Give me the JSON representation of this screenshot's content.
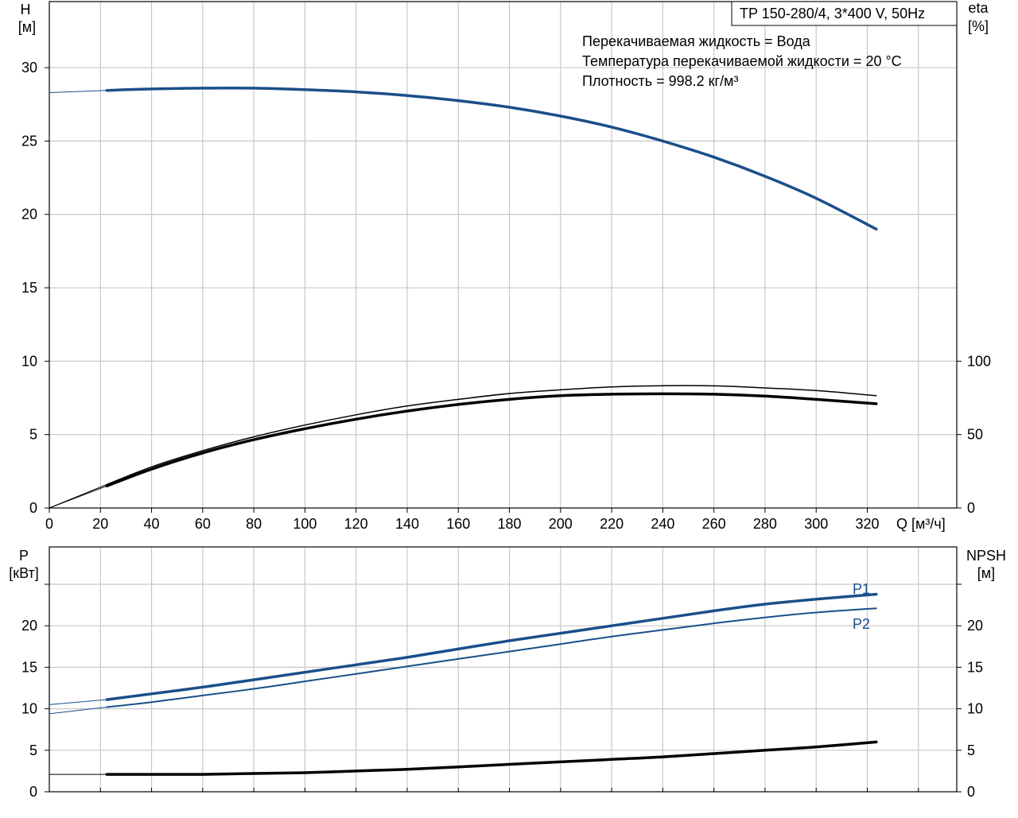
{
  "colors": {
    "blue": "#1a4f8a",
    "black": "#000000",
    "grid": "#c8c8c8"
  },
  "title": "TP 150-280/4, 3*400 V, 50Hz",
  "info": [
    "Перекачиваемая жидкость = Вода",
    "Температура перекачиваемой жидкости = 20 °C",
    "Плотность = 998.2 кг/м³"
  ],
  "top_axes": {
    "y_left_label": [
      "H",
      "[м]"
    ],
    "y_right_label": [
      "eta",
      "[%]"
    ],
    "x_label": "Q [м³/ч]",
    "y_left_ticks": [
      "0",
      "5",
      "10",
      "15",
      "20",
      "25",
      "30"
    ],
    "y_right_ticks": [
      "0",
      "50",
      "100"
    ],
    "x_ticks": [
      "0",
      "20",
      "40",
      "60",
      "80",
      "100",
      "120",
      "140",
      "160",
      "180",
      "200",
      "220",
      "240",
      "260",
      "280",
      "300",
      "320"
    ]
  },
  "bottom_axes": {
    "y_left_label": [
      "P",
      "[кВт]"
    ],
    "y_right_label": [
      "NPSH",
      "[м]"
    ],
    "y_left_ticks": [
      "0",
      "5",
      "10",
      "15",
      "20"
    ],
    "y_right_ticks": [
      "0",
      "5",
      "10",
      "15",
      "20"
    ]
  },
  "curve_labels": {
    "p1": "P1",
    "p2": "P2"
  },
  "chart_data": [
    {
      "type": "line",
      "panel": "top",
      "xlabel": "Q [м³/ч]",
      "ylabel": "H [м]",
      "y2label": "eta [%]",
      "xlim": [
        0,
        355
      ],
      "ylim": [
        0,
        34.5
      ],
      "y2lim": [
        0,
        345
      ],
      "grid": true,
      "series": [
        {
          "key": "H",
          "axis": "left",
          "color": "blue",
          "width": 3.5,
          "extension": [
            [
              0,
              28.3
            ],
            [
              22.5,
              28.45
            ]
          ],
          "x": [
            22.5,
            40,
            60,
            80,
            100,
            120,
            140,
            160,
            180,
            200,
            220,
            240,
            260,
            280,
            300,
            323.5
          ],
          "y": [
            28.45,
            28.55,
            28.6,
            28.6,
            28.5,
            28.35,
            28.1,
            27.75,
            27.3,
            26.7,
            25.95,
            25.0,
            23.9,
            22.6,
            21.1,
            19.0
          ]
        },
        {
          "key": "eta_thin",
          "axis": "right",
          "color": "black",
          "width": 1.5,
          "extension": [
            [
              0,
              0
            ],
            [
              22.5,
              16
            ]
          ],
          "x": [
            22.5,
            40,
            60,
            80,
            100,
            120,
            140,
            160,
            180,
            200,
            220,
            240,
            260,
            280,
            300,
            323.5
          ],
          "y": [
            16,
            28,
            39,
            48.5,
            56.5,
            63.5,
            69.5,
            74,
            78,
            80.5,
            82.5,
            83.3,
            83.2,
            81.8,
            80,
            76.5
          ]
        },
        {
          "key": "eta_thick",
          "axis": "right",
          "color": "black",
          "width": 3.5,
          "extension": [
            [
              0,
              0
            ],
            [
              22.5,
              15
            ]
          ],
          "x": [
            22.5,
            40,
            60,
            80,
            100,
            120,
            140,
            160,
            180,
            200,
            220,
            240,
            260,
            280,
            300,
            323.5
          ],
          "y": [
            15,
            26.5,
            37.5,
            46.5,
            54,
            60.5,
            66,
            70.5,
            74,
            76.5,
            77.5,
            77.8,
            77.5,
            76.2,
            74,
            71
          ]
        }
      ]
    },
    {
      "type": "line",
      "panel": "bottom",
      "ylabel": "P [кВт]",
      "y2label": "NPSH [м]",
      "xlim": [
        0,
        355
      ],
      "ylim": [
        0,
        29.5
      ],
      "y2lim": [
        0,
        29.5
      ],
      "grid": true,
      "series": [
        {
          "key": "P1",
          "name": "P1",
          "axis": "left",
          "color": "blue",
          "width": 3.5,
          "extension": [
            [
              0,
              10.5
            ],
            [
              22.5,
              11.1
            ]
          ],
          "x": [
            22.5,
            40,
            60,
            80,
            100,
            120,
            140,
            160,
            180,
            200,
            220,
            240,
            260,
            280,
            300,
            323.5
          ],
          "y": [
            11.1,
            11.8,
            12.6,
            13.5,
            14.4,
            15.3,
            16.2,
            17.2,
            18.2,
            19.1,
            20.0,
            20.9,
            21.8,
            22.6,
            23.2,
            23.8
          ]
        },
        {
          "key": "P2",
          "name": "P2",
          "axis": "left",
          "color": "blue",
          "width": 2,
          "extension": [
            [
              0,
              9.4
            ],
            [
              22.5,
              10.2
            ]
          ],
          "x": [
            22.5,
            40,
            60,
            80,
            100,
            120,
            140,
            160,
            180,
            200,
            220,
            240,
            260,
            280,
            300,
            323.5
          ],
          "y": [
            10.2,
            10.8,
            11.6,
            12.4,
            13.3,
            14.2,
            15.1,
            16.0,
            16.9,
            17.8,
            18.7,
            19.5,
            20.3,
            21.0,
            21.6,
            22.1
          ]
        },
        {
          "key": "NPSH",
          "axis": "right",
          "color": "black",
          "width": 3.5,
          "extension": [
            [
              0,
              2.1
            ],
            [
              22.5,
              2.1
            ]
          ],
          "x": [
            22.5,
            40,
            60,
            80,
            100,
            120,
            140,
            160,
            180,
            200,
            220,
            240,
            260,
            280,
            300,
            323.5
          ],
          "y": [
            2.1,
            2.1,
            2.1,
            2.2,
            2.3,
            2.5,
            2.7,
            3.0,
            3.3,
            3.6,
            3.9,
            4.2,
            4.6,
            5.0,
            5.4,
            6.0
          ]
        }
      ]
    }
  ]
}
